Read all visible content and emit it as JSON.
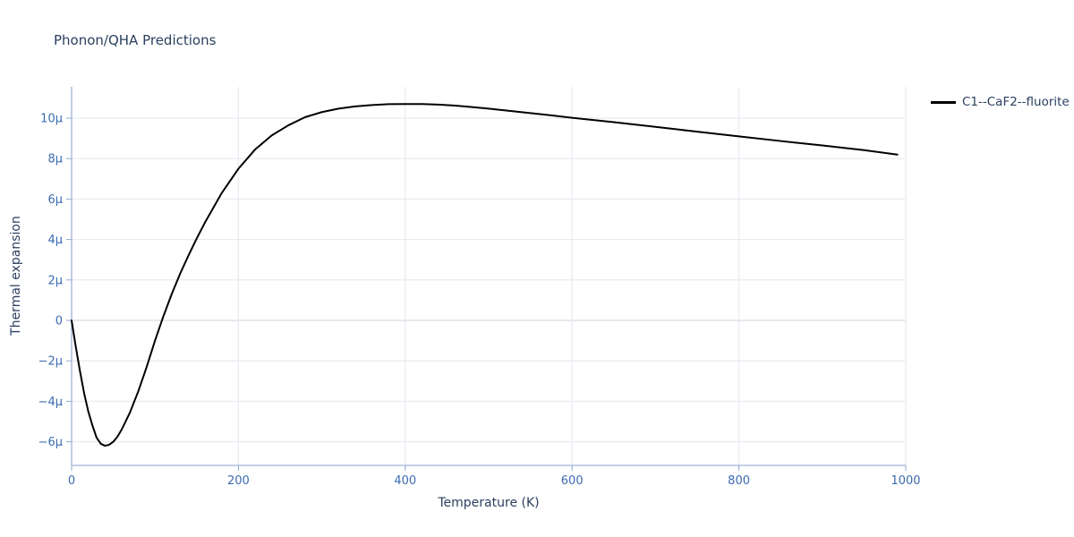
{
  "title": "Phonon/QHA Predictions",
  "colors": {
    "line": "#000000",
    "title_text": "#2a3f5f",
    "axis_title_text": "#2a3f5f",
    "tick_label": "#3b6bb0",
    "tick_mark": "#8fa9cf",
    "axis_line": "#9db4d6",
    "grid": "#e8ecf1",
    "zeroline": "#d7dce3",
    "background": "#ffffff"
  },
  "chart_data": {
    "type": "line",
    "title": "Phonon/QHA Predictions",
    "xlabel": "Temperature (K)",
    "ylabel": "Thermal expansion",
    "xlim": [
      0,
      1000
    ],
    "ylim": [
      -7.17,
      11.55
    ],
    "grid": true,
    "legend_position": "top-right-outside",
    "x_ticks": [
      {
        "value": 0,
        "label": "0"
      },
      {
        "value": 200,
        "label": "200"
      },
      {
        "value": 400,
        "label": "400"
      },
      {
        "value": 600,
        "label": "600"
      },
      {
        "value": 800,
        "label": "800"
      },
      {
        "value": 1000,
        "label": "1000"
      }
    ],
    "y_ticks": [
      {
        "value": -6,
        "label": "−6µ"
      },
      {
        "value": -4,
        "label": "−4µ"
      },
      {
        "value": -2,
        "label": "−2µ"
      },
      {
        "value": 0,
        "label": "0"
      },
      {
        "value": 2,
        "label": "2µ"
      },
      {
        "value": 4,
        "label": "4µ"
      },
      {
        "value": 6,
        "label": "6µ"
      },
      {
        "value": 8,
        "label": "8µ"
      },
      {
        "value": 10,
        "label": "10µ"
      }
    ],
    "series": [
      {
        "name": "C1--CaF2--fluorite",
        "color": "#000000",
        "x": [
          0,
          5,
          10,
          15,
          20,
          25,
          30,
          35,
          40,
          45,
          50,
          55,
          60,
          70,
          80,
          90,
          100,
          110,
          120,
          130,
          140,
          150,
          160,
          180,
          200,
          220,
          240,
          260,
          280,
          300,
          320,
          340,
          360,
          380,
          400,
          420,
          440,
          460,
          480,
          500,
          525,
          550,
          575,
          600,
          650,
          700,
          750,
          800,
          850,
          900,
          950,
          990
        ],
        "y": [
          0,
          -1.3,
          -2.5,
          -3.6,
          -4.5,
          -5.2,
          -5.8,
          -6.1,
          -6.2,
          -6.15,
          -6.0,
          -5.75,
          -5.4,
          -4.55,
          -3.5,
          -2.3,
          -1.0,
          0.2,
          1.3,
          2.3,
          3.2,
          4.05,
          4.85,
          6.3,
          7.5,
          8.45,
          9.15,
          9.65,
          10.05,
          10.3,
          10.47,
          10.58,
          10.65,
          10.69,
          10.7,
          10.7,
          10.67,
          10.62,
          10.55,
          10.47,
          10.36,
          10.25,
          10.14,
          10.02,
          9.8,
          9.57,
          9.33,
          9.1,
          8.87,
          8.65,
          8.42,
          8.2
        ]
      }
    ]
  }
}
